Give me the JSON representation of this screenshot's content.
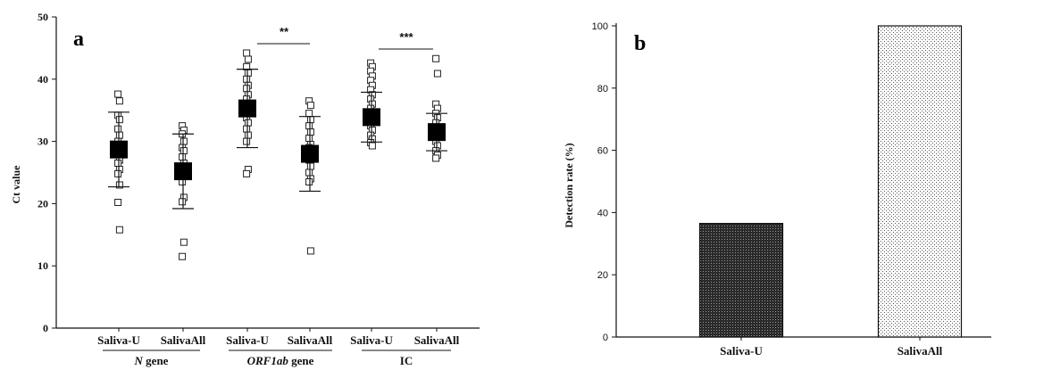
{
  "chart_data": [
    {
      "type": "scatter",
      "panel_label": "a",
      "ylabel": "Ct value",
      "ylim": [
        0,
        50
      ],
      "yticks": [
        0,
        10,
        20,
        30,
        40,
        50
      ],
      "categories": [
        "Saliva-U",
        "SalivaAll",
        "Saliva-U",
        "SalivaAll",
        "Saliva-U",
        "SalivaAll"
      ],
      "groups": [
        {
          "italic": "N",
          "rest": " gene"
        },
        {
          "italic": "ORF1ab",
          "rest": " gene"
        },
        {
          "italic": "",
          "rest": "IC"
        }
      ],
      "significance": [
        "**",
        "***"
      ],
      "series": [
        {
          "mean": 28.7,
          "sd": 6.0,
          "points": [
            37.6,
            36.5,
            34.2,
            33.5,
            32.0,
            31.0,
            30.0,
            29.0,
            28.0,
            27.0,
            26.5,
            25.5,
            24.8,
            23.0,
            20.2,
            15.8
          ]
        },
        {
          "mean": 25.2,
          "sd": 6.0,
          "points": [
            32.5,
            31.8,
            31.2,
            30.0,
            29.0,
            28.5,
            27.5,
            26.5,
            25.5,
            24.5,
            23.5,
            21.0,
            20.3,
            13.8,
            11.5
          ]
        },
        {
          "mean": 35.3,
          "sd": 6.3,
          "points": [
            44.2,
            43.2,
            42.0,
            41.0,
            40.0,
            39.0,
            38.5,
            37.5,
            36.8,
            36.0,
            35.0,
            34.5,
            33.8,
            33.0,
            32.0,
            31.0,
            30.0,
            25.5,
            24.8
          ]
        },
        {
          "mean": 28.0,
          "sd": 6.0,
          "points": [
            36.5,
            35.8,
            34.5,
            33.5,
            32.5,
            31.5,
            30.5,
            29.5,
            29.0,
            28.0,
            27.0,
            26.0,
            25.0,
            24.0,
            23.5,
            12.4
          ]
        },
        {
          "mean": 33.9,
          "sd": 4.0,
          "points": [
            42.6,
            42.0,
            41.3,
            40.5,
            39.8,
            39.0,
            38.3,
            37.5,
            36.8,
            36.0,
            35.3,
            34.5,
            34.0,
            33.3,
            32.5,
            31.8,
            31.0,
            30.4,
            29.8,
            29.3
          ]
        },
        {
          "mean": 31.5,
          "sd": 3.0,
          "points": [
            43.3,
            40.9,
            36.0,
            35.3,
            34.5,
            33.8,
            33.0,
            32.3,
            31.5,
            30.8,
            30.0,
            29.3,
            28.5,
            27.8,
            27.3
          ]
        }
      ]
    },
    {
      "type": "bar",
      "panel_label": "b",
      "ylabel": "Detection rate (%)",
      "ylim": [
        0,
        100
      ],
      "yticks": [
        0,
        20,
        40,
        60,
        80,
        100
      ],
      "categories": [
        "Saliva-U",
        "SalivaAll"
      ],
      "values": [
        36.5,
        100
      ]
    }
  ]
}
